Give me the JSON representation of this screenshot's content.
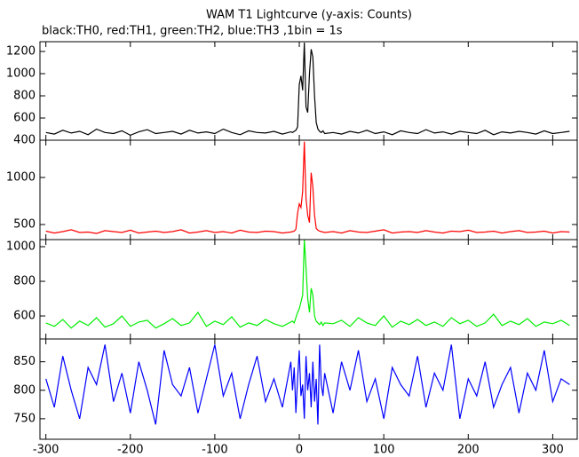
{
  "chart_data": {
    "type": "line",
    "title": "WAM T1 Lightcurve (y-axis: Counts)",
    "subtitle": "black:TH0, red:TH1, green:TH2, blue:TH3 ,1bin = 1s",
    "x": [
      -300,
      -290,
      -280,
      -270,
      -260,
      -250,
      -240,
      -230,
      -220,
      -210,
      -200,
      -190,
      -180,
      -170,
      -160,
      -150,
      -140,
      -130,
      -120,
      -110,
      -100,
      -90,
      -80,
      -70,
      -60,
      -50,
      -40,
      -30,
      -20,
      -10,
      -8,
      -6,
      -4,
      -2,
      0,
      2,
      4,
      6,
      8,
      10,
      12,
      14,
      16,
      18,
      20,
      22,
      24,
      26,
      28,
      30,
      40,
      50,
      60,
      70,
      80,
      90,
      100,
      110,
      120,
      130,
      140,
      150,
      160,
      170,
      180,
      190,
      200,
      210,
      220,
      230,
      240,
      250,
      260,
      270,
      280,
      290,
      300,
      310,
      320
    ],
    "xlim": [
      -307,
      329
    ],
    "xticks": [
      -300,
      -200,
      -100,
      0,
      100,
      200,
      300
    ],
    "series": [
      {
        "color": "#000000",
        "ylim": [
          400,
          1288
        ],
        "yticks": [
          400,
          600,
          800,
          1000,
          1200
        ],
        "values": [
          470,
          455,
          490,
          465,
          480,
          450,
          500,
          470,
          460,
          485,
          445,
          475,
          495,
          460,
          470,
          480,
          455,
          490,
          465,
          475,
          460,
          500,
          470,
          450,
          485,
          470,
          465,
          480,
          455,
          475,
          470,
          480,
          490,
          520,
          900,
          980,
          850,
          1280,
          700,
          650,
          1000,
          1220,
          1150,
          800,
          560,
          500,
          480,
          470,
          485,
          460,
          470,
          455,
          480,
          465,
          490,
          460,
          475,
          450,
          485,
          470,
          460,
          495,
          465,
          475,
          455,
          480,
          470,
          460,
          490,
          450,
          475,
          465,
          480,
          470,
          455,
          485,
          460,
          470,
          480
        ]
      },
      {
        "color": "#ff0000",
        "ylim": [
          340,
          1396
        ],
        "yticks": [
          500,
          1000
        ],
        "values": [
          430,
          410,
          425,
          445,
          415,
          420,
          405,
          435,
          425,
          415,
          440,
          410,
          420,
          430,
          415,
          425,
          445,
          410,
          420,
          435,
          415,
          425,
          410,
          440,
          420,
          415,
          430,
          425,
          410,
          420,
          425,
          430,
          450,
          620,
          720,
          680,
          850,
          1380,
          780,
          600,
          520,
          1050,
          900,
          600,
          460,
          440,
          430,
          425,
          420,
          415,
          425,
          410,
          435,
          420,
          415,
          430,
          445,
          410,
          420,
          425,
          415,
          435,
          420,
          410,
          430,
          425,
          440,
          415,
          420,
          430,
          410,
          425,
          435,
          415,
          420,
          430,
          410,
          425,
          420
        ]
      },
      {
        "color": "#00ee00",
        "ylim": [
          467,
          1041
        ],
        "yticks": [
          600,
          800,
          1000
        ],
        "values": [
          560,
          540,
          580,
          530,
          570,
          545,
          590,
          535,
          555,
          600,
          540,
          565,
          575,
          530,
          555,
          585,
          545,
          560,
          620,
          540,
          570,
          550,
          595,
          535,
          560,
          545,
          580,
          555,
          540,
          565,
          570,
          560,
          590,
          620,
          640,
          680,
          720,
          1040,
          880,
          700,
          620,
          760,
          720,
          600,
          570,
          560,
          550,
          565,
          545,
          560,
          555,
          575,
          540,
          590,
          560,
          545,
          600,
          535,
          570,
          550,
          580,
          545,
          565,
          540,
          590,
          555,
          575,
          540,
          560,
          610,
          545,
          570,
          550,
          585,
          540,
          565,
          555,
          575,
          545
        ]
      },
      {
        "color": "#0000ff",
        "ylim": [
          714,
          890
        ],
        "yticks": [
          750,
          800,
          850
        ],
        "values": [
          820,
          770,
          860,
          800,
          750,
          840,
          810,
          880,
          780,
          830,
          760,
          850,
          800,
          740,
          870,
          810,
          790,
          840,
          760,
          820,
          880,
          790,
          830,
          750,
          810,
          860,
          780,
          820,
          770,
          850,
          800,
          840,
          760,
          820,
          870,
          790,
          810,
          750,
          860,
          800,
          830,
          770,
          850,
          780,
          820,
          740,
          880,
          810,
          790,
          830,
          760,
          850,
          800,
          870,
          780,
          820,
          750,
          840,
          810,
          790,
          860,
          770,
          830,
          800,
          880,
          750,
          820,
          790,
          850,
          770,
          810,
          840,
          760,
          830,
          800,
          870,
          780,
          820,
          810
        ]
      }
    ]
  }
}
